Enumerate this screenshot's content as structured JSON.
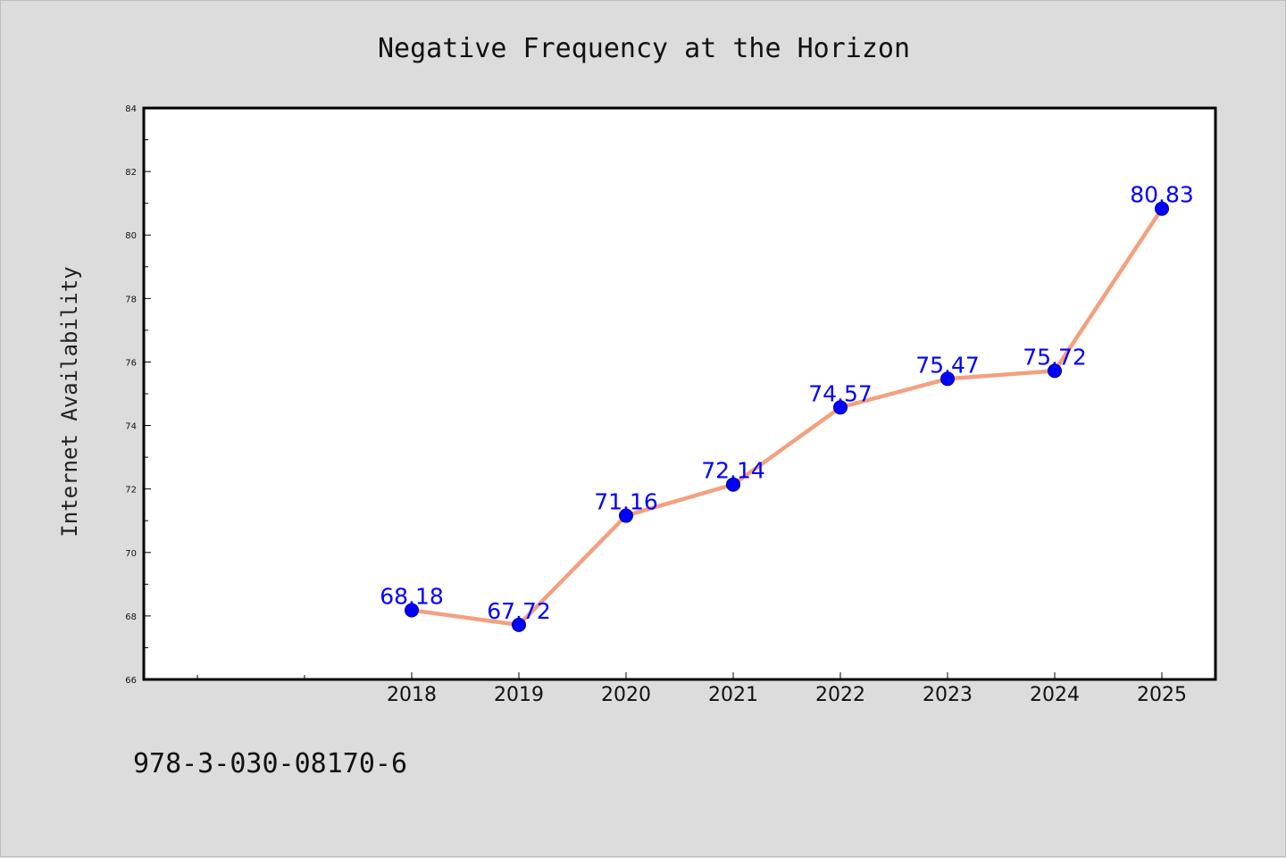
{
  "footer": {
    "code": "978-3-030-08170-6"
  },
  "colors": {
    "background": "#dcdcdc",
    "plot_bg": "#ffffff",
    "line": "#f4a07f",
    "marker": "#0000ff",
    "label": "#0000ff"
  },
  "chart_data": {
    "type": "line",
    "title": "Negative Frequency at the Horizon",
    "xlabel": "",
    "ylabel": "Internet Availability",
    "categories": [
      "2018",
      "2019",
      "2020",
      "2021",
      "2022",
      "2023",
      "2024",
      "2025"
    ],
    "series": [
      {
        "values": [
          68.18,
          67.72,
          71.16,
          72.14,
          74.57,
          75.47,
          75.72,
          80.83
        ]
      }
    ],
    "value_labels": [
      "68.18",
      "67.72",
      "71.16",
      "72.14",
      "74.57",
      "75.47",
      "75.72",
      "80.83"
    ],
    "ylim": [
      66,
      84
    ],
    "yticks": [
      "66",
      "68",
      "70",
      "72",
      "74",
      "76",
      "78",
      "80",
      "82",
      "84"
    ],
    "grid": false,
    "legend": "none"
  }
}
